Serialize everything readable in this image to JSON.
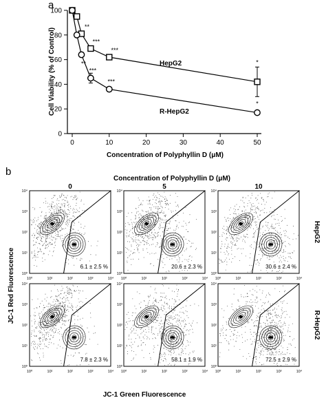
{
  "chart_data": [
    {
      "panel": "a",
      "type": "line",
      "xlabel": "Concentration of Polyphyllin D (μM)",
      "ylabel": "Cell Viability (% of Control)",
      "xlim": [
        0,
        50
      ],
      "ylim": [
        0,
        100
      ],
      "xticks": [
        "0",
        "10",
        "20",
        "30",
        "40",
        "50"
      ],
      "yticks": [
        "0",
        "20",
        "40",
        "60",
        "80",
        "100"
      ],
      "grid": false,
      "series": [
        {
          "name": "HepG2",
          "marker": "square",
          "x": [
            0,
            1.25,
            2.5,
            5,
            10,
            50
          ],
          "y": [
            100,
            95,
            81,
            69,
            62,
            42
          ],
          "error": [
            1,
            2,
            2,
            2,
            2,
            12
          ],
          "significance": [
            "",
            "",
            "**",
            "***",
            "***",
            "*"
          ]
        },
        {
          "name": "R-HepG2",
          "marker": "circle",
          "x": [
            0,
            1.25,
            2.5,
            5,
            10,
            50
          ],
          "y": [
            100,
            80,
            64,
            45,
            36,
            17
          ],
          "error": [
            1,
            2,
            2,
            4,
            2,
            1
          ],
          "significance": [
            "",
            "",
            "**",
            "***",
            "***",
            "*"
          ]
        }
      ]
    },
    {
      "panel": "b",
      "type": "scatter",
      "title": "Concentration of Polyphyllin D (μM)",
      "xlabel": "JC-1 Green Fluorescence",
      "ylabel": "JC-1 Red Fluorescence",
      "columns": [
        "0",
        "5",
        "10"
      ],
      "rows": [
        "HepG2",
        "R-HepG2"
      ],
      "tick_labels": [
        "10⁰",
        "10¹",
        "10²",
        "10³",
        "10⁴"
      ],
      "percentages": [
        [
          "6.1 ± 2.5 %",
          "20.6 ± 2.3 %",
          "30.6 ± 2.4 %"
        ],
        [
          "7.8 ± 2.3 %",
          "58.1 ± 1.9 %",
          "72.5 ± 2.9 %"
        ]
      ],
      "polygon_gate": true
    }
  ]
}
